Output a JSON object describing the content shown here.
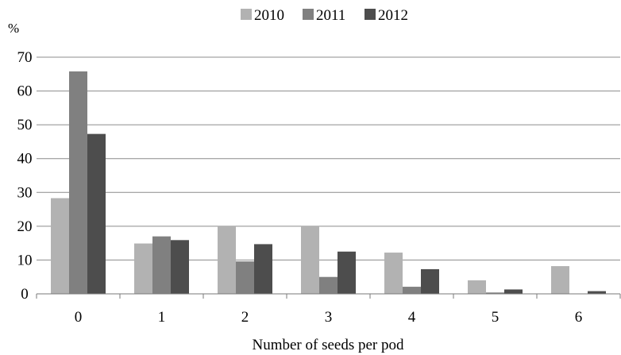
{
  "chart_data": {
    "type": "bar",
    "title": "",
    "xlabel": "Number of seeds per pod",
    "ylabel": "%",
    "categories": [
      "0",
      "1",
      "2",
      "3",
      "4",
      "5",
      "6"
    ],
    "series": [
      {
        "name": "2010",
        "color": "#b2b2b2",
        "values": [
          28.3,
          14.9,
          20.0,
          20.0,
          12.2,
          4.0,
          8.2
        ]
      },
      {
        "name": "2011",
        "color": "#808080",
        "values": [
          65.8,
          17.0,
          9.6,
          5.0,
          2.1,
          0.4,
          0.1
        ]
      },
      {
        "name": "2012",
        "color": "#4d4d4d",
        "values": [
          47.3,
          15.9,
          14.7,
          12.5,
          7.3,
          1.3,
          0.8
        ]
      }
    ],
    "ylim": [
      0,
      70
    ],
    "yticks": [
      0,
      10,
      20,
      30,
      40,
      50,
      60,
      70
    ],
    "grid": true,
    "legend_position": "top-center"
  }
}
